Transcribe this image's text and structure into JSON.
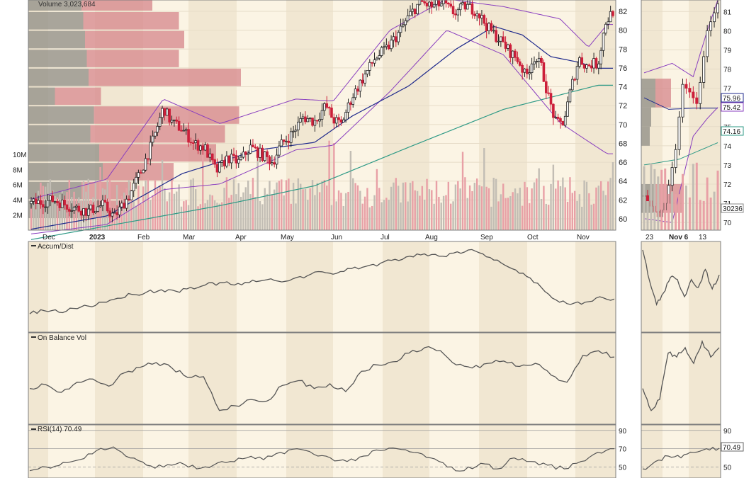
{
  "colors": {
    "bg": "#fbf4e4",
    "band": "#f1e7d2",
    "grid": "#e6dcc8",
    "border": "#7f7f7f",
    "up": "#222222",
    "down": "#cc1f3a",
    "sma50": "#1f2a8c",
    "sma200": "#2e9a86",
    "bb": "#8a3fbf",
    "line": "#555555",
    "vol_down": "#e8a0a6",
    "vol_up": "#c2bdb4",
    "vbp_up": "#9a968e",
    "vbp_down": "#d6858b"
  },
  "chart_data": [
    {
      "type": "candlestick",
      "panel": "price",
      "volume_label": "Volume 3,023,684",
      "x_ticks": [
        "Dec",
        "2023",
        "Feb",
        "Mar",
        "Apr",
        "May",
        "Jun",
        "Jul",
        "Aug",
        "Sep",
        "Oct",
        "Nov"
      ],
      "y_ticks": [
        60,
        62,
        64,
        66,
        68,
        70,
        72,
        74,
        76,
        78,
        80,
        82
      ],
      "ylim": [
        58.8,
        83.2
      ],
      "vol_ticks": [
        "2M",
        "4M",
        "6M",
        "8M",
        "10M"
      ],
      "vol_values": [
        2,
        4,
        6,
        8,
        10
      ],
      "vol_max": 14,
      "price_path": [
        [
          0,
          61.6
        ],
        [
          12,
          62.0
        ],
        [
          22,
          61.2
        ],
        [
          30,
          60.8
        ],
        [
          38,
          61.5
        ],
        [
          44,
          60.2
        ],
        [
          52,
          62.5
        ],
        [
          58,
          65.0
        ],
        [
          64,
          68.0
        ],
        [
          70,
          71.8
        ],
        [
          74,
          70.3
        ],
        [
          80,
          69.5
        ],
        [
          86,
          68.0
        ],
        [
          92,
          67.5
        ],
        [
          98,
          65.0
        ],
        [
          104,
          66.5
        ],
        [
          110,
          66.0
        ],
        [
          116,
          67.6
        ],
        [
          122,
          66.8
        ],
        [
          128,
          66.0
        ],
        [
          132,
          67.8
        ],
        [
          138,
          69.0
        ],
        [
          144,
          70.8
        ],
        [
          150,
          70.3
        ],
        [
          156,
          72.0
        ],
        [
          160,
          70.5
        ],
        [
          164,
          70.0
        ],
        [
          170,
          73.0
        ],
        [
          176,
          75.0
        ],
        [
          182,
          77.0
        ],
        [
          188,
          78.0
        ],
        [
          194,
          79.5
        ],
        [
          200,
          81.5
        ],
        [
          206,
          83.0
        ],
        [
          212,
          82.5
        ],
        [
          218,
          82.8
        ],
        [
          224,
          81.8
        ],
        [
          230,
          82.6
        ],
        [
          236,
          82.0
        ],
        [
          242,
          80.2
        ],
        [
          248,
          79.0
        ],
        [
          254,
          77.6
        ],
        [
          258,
          76.8
        ],
        [
          262,
          75.0
        ],
        [
          266,
          77.2
        ],
        [
          270,
          76.2
        ],
        [
          274,
          72.8
        ],
        [
          278,
          70.0
        ],
        [
          282,
          70.3
        ],
        [
          286,
          74.0
        ],
        [
          290,
          77.0
        ],
        [
          294,
          76.2
        ],
        [
          298,
          76.5
        ],
        [
          300,
          76.3
        ],
        [
          304,
          80.8
        ],
        [
          308,
          82.0
        ]
      ],
      "sma50_path": [
        [
          0,
          58.9
        ],
        [
          40,
          60.3
        ],
        [
          80,
          64.8
        ],
        [
          120,
          67.3
        ],
        [
          150,
          68.1
        ],
        [
          170,
          70.9
        ],
        [
          200,
          74.1
        ],
        [
          225,
          78.0
        ],
        [
          245,
          80.4
        ],
        [
          260,
          79.5
        ],
        [
          275,
          77.2
        ],
        [
          290,
          76.6
        ],
        [
          300,
          75.96
        ]
      ],
      "sma200_path": [
        [
          0,
          57.8
        ],
        [
          100,
          61.4
        ],
        [
          150,
          63.5
        ],
        [
          200,
          67.6
        ],
        [
          250,
          71.6
        ],
        [
          300,
          74.16
        ]
      ],
      "bb_upper_path": [
        [
          0,
          62.1
        ],
        [
          40,
          64.2
        ],
        [
          70,
          72.7
        ],
        [
          100,
          70.1
        ],
        [
          140,
          72.7
        ],
        [
          160,
          72.5
        ],
        [
          190,
          80.0
        ],
        [
          220,
          83.3
        ],
        [
          250,
          82.5
        ],
        [
          280,
          81.2
        ],
        [
          295,
          78.2
        ],
        [
          305,
          80.6
        ]
      ],
      "bb_lower_path": [
        [
          0,
          58.4
        ],
        [
          40,
          59.4
        ],
        [
          70,
          63.1
        ],
        [
          100,
          63.7
        ],
        [
          140,
          67.3
        ],
        [
          160,
          67.8
        ],
        [
          190,
          73.5
        ],
        [
          220,
          80.0
        ],
        [
          250,
          77.4
        ],
        [
          280,
          70.2
        ],
        [
          295,
          68.2
        ],
        [
          305,
          66.9
        ]
      ],
      "last_labels": [
        "75.96",
        "75.42",
        "74.16",
        "30236"
      ],
      "inset_x_ticks": [
        "23",
        "Nov 6",
        "13"
      ],
      "inset_y_ticks": [
        70,
        71,
        72,
        73,
        74,
        75,
        76,
        77,
        78,
        79,
        80,
        81
      ],
      "inset_ylim": [
        69.6,
        81.6
      ]
    },
    {
      "type": "line",
      "panel": "indicator",
      "title": "Accum/Dist",
      "values": [
        18,
        22,
        20,
        25,
        28,
        33,
        38,
        43,
        46,
        49,
        47,
        52,
        55,
        58,
        55,
        58,
        61,
        60,
        63,
        67,
        72,
        70,
        76,
        79,
        83,
        88,
        92,
        95,
        92,
        96,
        100,
        95,
        87,
        76,
        66,
        52,
        36,
        30,
        33,
        40,
        37
      ],
      "inset_values": [
        100,
        60,
        30,
        45,
        65,
        62,
        40,
        62,
        52,
        75,
        50,
        68
      ]
    },
    {
      "type": "line",
      "panel": "indicator",
      "title": "On Balance Vol",
      "values": [
        40,
        45,
        35,
        48,
        52,
        43,
        60,
        67,
        73,
        66,
        54,
        55,
        12,
        18,
        26,
        24,
        44,
        50,
        40,
        46,
        36,
        62,
        70,
        74,
        85,
        92,
        88,
        70,
        66,
        72,
        75,
        68,
        72,
        57,
        48,
        82,
        88,
        80
      ],
      "inset_values": [
        40,
        12,
        26,
        85,
        80,
        92,
        72,
        100,
        80,
        92
      ]
    },
    {
      "type": "line",
      "panel": "indicator",
      "title": "RSI(14) 70.49",
      "y_ticks": [
        50,
        70,
        90
      ],
      "ylim": [
        38,
        96
      ],
      "values": [
        46,
        50,
        55,
        58,
        68,
        72,
        60,
        52,
        50,
        55,
        48,
        52,
        56,
        60,
        58,
        66,
        70,
        64,
        60,
        56,
        62,
        68,
        70,
        66,
        60,
        50,
        46,
        54,
        48,
        60,
        56,
        52,
        48,
        56,
        66,
        70
      ],
      "inset_values": [
        48,
        56,
        62,
        60,
        66,
        70,
        70.49
      ],
      "last_label": "70.49"
    }
  ]
}
